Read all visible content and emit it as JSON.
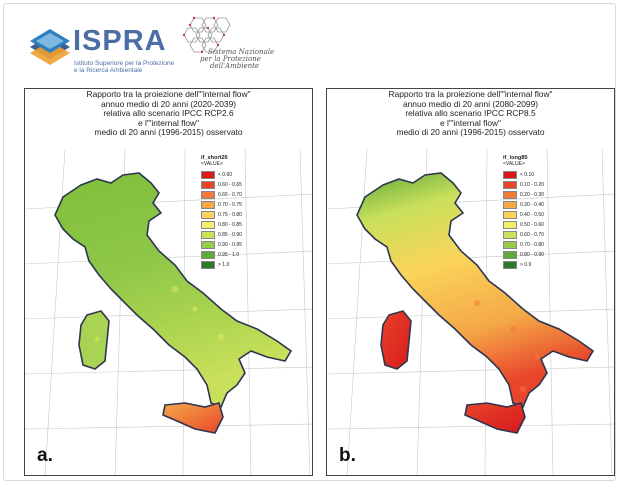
{
  "header": {
    "ispra_name": "ISPRA",
    "ispra_subtitle_line1": "Istituto Superiore per la Protezione",
    "ispra_subtitle_line2": "e la Ricerca Ambientale",
    "snpa_line1": "Sistema Nazionale",
    "snpa_line2": "per la Protezione",
    "snpa_line3": "dell'Ambiente"
  },
  "maps": [
    {
      "letter": "a.",
      "title_lines": [
        "Rapporto tra la proiezione dell'\"internal flow\"",
        "annuo medio di 20 anni (2020-2039)",
        "relativa allo scenario IPCC RCP2.6",
        "e l'\"internal flow\"",
        "medio di 20 anni (1996-2015) osservato"
      ],
      "legend_title": "if_short26",
      "legend_subtitle": "<VALUE>",
      "legend": [
        {
          "label": "< 0.60",
          "color": "#d7191c"
        },
        {
          "label": "0.60 - 0.65",
          "color": "#e8452a"
        },
        {
          "label": "0.65 - 0.70",
          "color": "#f07838"
        },
        {
          "label": "0.70 - 0.75",
          "color": "#f5a847"
        },
        {
          "label": "0.75 - 0.80",
          "color": "#fad45a"
        },
        {
          "label": "0.80 - 0.85",
          "color": "#f2f06a"
        },
        {
          "label": "0.85 - 0.90",
          "color": "#c9e05a"
        },
        {
          "label": "0.90 - 0.95",
          "color": "#97c94a"
        },
        {
          "label": "0.95 - 1.0",
          "color": "#5fa83a"
        },
        {
          "label": "> 1.0",
          "color": "#2a7a2a"
        }
      ]
    },
    {
      "letter": "b.",
      "title_lines": [
        "Rapporto tra la proiezione dell'\"internal flow\"",
        "annuo medio di 20 anni (2080-2099)",
        "relativa allo scenario IPCC RCP8.5",
        "e l'\"internal flow\"",
        "medio di 20 anni (1996-2015) osservato"
      ],
      "legend_title": "if_long85",
      "legend_subtitle": "<VALUE>",
      "legend": [
        {
          "label": "< 0.10",
          "color": "#d7191c"
        },
        {
          "label": "0.10 - 0.20",
          "color": "#e8452a"
        },
        {
          "label": "0.20 - 0.30",
          "color": "#f07838"
        },
        {
          "label": "0.30 - 0.40",
          "color": "#f5a847"
        },
        {
          "label": "0.40 - 0.50",
          "color": "#fad45a"
        },
        {
          "label": "0.50 - 0.60",
          "color": "#f2f06a"
        },
        {
          "label": "0.60 - 0.70",
          "color": "#c9e05a"
        },
        {
          "label": "0.70 - 0.80",
          "color": "#97c94a"
        },
        {
          "label": "0.80 - 0.90",
          "color": "#5fa83a"
        },
        {
          "label": "> 0.9",
          "color": "#2a7a2a"
        }
      ]
    }
  ]
}
